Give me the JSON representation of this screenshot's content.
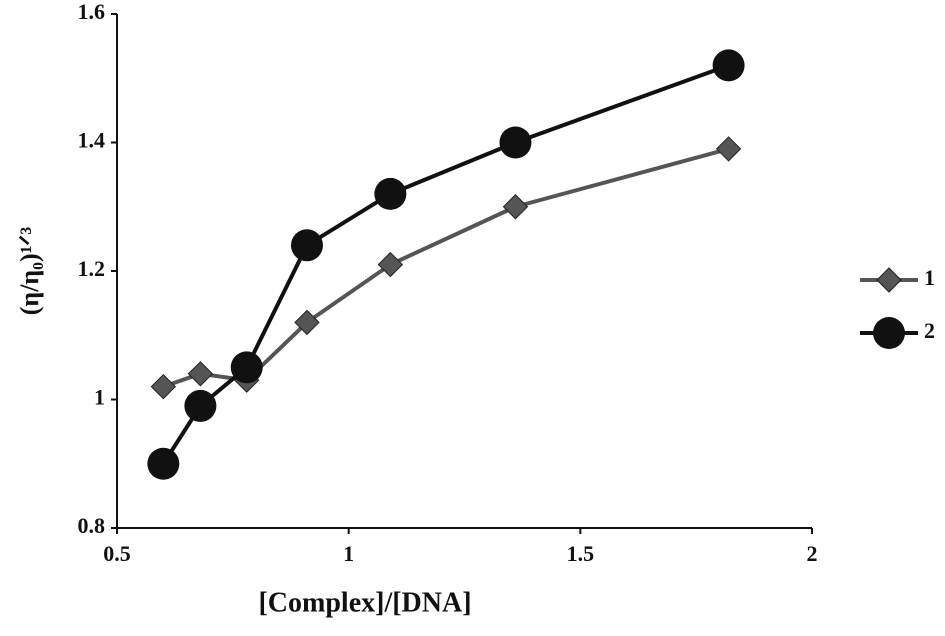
{
  "chart_data": {
    "type": "line",
    "x_label": "[Complex]/[DNA]",
    "y_label": "(η/η₀)¹ᐟ³",
    "x": [
      0.6,
      0.68,
      0.78,
      0.91,
      1.09,
      1.36,
      1.82
    ],
    "series": [
      {
        "name": "1",
        "color": "#555555",
        "marker": "diamond",
        "values": [
          1.02,
          1.04,
          1.03,
          1.12,
          1.21,
          1.3,
          1.39
        ]
      },
      {
        "name": "2",
        "color": "#111111",
        "marker": "circle",
        "values": [
          0.9,
          0.99,
          1.05,
          1.24,
          1.32,
          1.4,
          1.52
        ]
      }
    ],
    "xlim": [
      0.5,
      2
    ],
    "xticks": [
      0.5,
      1,
      1.5,
      2
    ],
    "ylim": [
      0.8,
      1.6
    ],
    "yticks": [
      0.8,
      1,
      1.2,
      1.4,
      1.6
    ],
    "grid": false,
    "legend": "right"
  }
}
